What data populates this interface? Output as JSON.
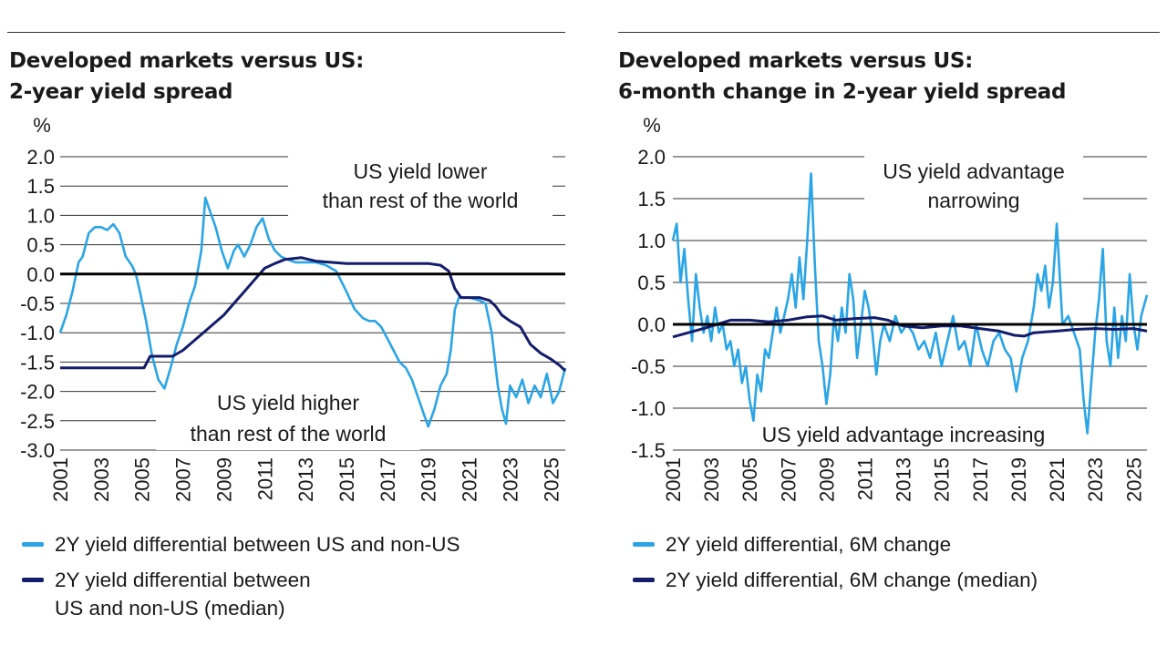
{
  "colors": {
    "light_series": "#2aa5e6",
    "dark_series": "#131d6b",
    "zero_line": "#000000",
    "grid": "#333333",
    "text": "#1a1a1a"
  },
  "chart_data": [
    {
      "type": "line",
      "title": "Developed markets versus US:",
      "subtitle": "2-year yield spread",
      "ylabel": "%",
      "ylim": [
        -3.0,
        2.0
      ],
      "yticks": [
        "2.0",
        "1.5",
        "1.0",
        "0.5",
        "0.0",
        "-0.5",
        "-1.0",
        "-1.5",
        "-2.0",
        "-2.5",
        "-3.0"
      ],
      "xlim": [
        2001,
        2025.7
      ],
      "xticks": [
        "2001",
        "2003",
        "2005",
        "2007",
        "2009",
        "2011",
        "2013",
        "2015",
        "2017",
        "2019",
        "2021",
        "2023",
        "2025"
      ],
      "annotations": [
        {
          "line1": "US yield lower",
          "line2": "than rest of the world"
        },
        {
          "line1": "US yield higher",
          "line2": "than rest of the world"
        }
      ],
      "legend": [
        {
          "lines": [
            "2Y yield differential between US and non-US"
          ],
          "color": "#2aa5e6"
        },
        {
          "lines": [
            "2Y yield differential between",
            "US and non-US (median)"
          ],
          "color": "#131d6b"
        }
      ],
      "series": [
        {
          "name": "2Y yield differential between US and non-US",
          "color": "#2aa5e6",
          "x": [
            2001,
            2001.3,
            2001.6,
            2001.9,
            2002.1,
            2002.4,
            2002.7,
            2003.0,
            2003.3,
            2003.6,
            2003.9,
            2004.2,
            2004.5,
            2004.7,
            2004.9,
            2005.2,
            2005.5,
            2005.8,
            2006.1,
            2006.4,
            2006.7,
            2007.0,
            2007.3,
            2007.6,
            2007.9,
            2008.1,
            2008.3,
            2008.6,
            2008.9,
            2009.2,
            2009.5,
            2009.7,
            2010.0,
            2010.3,
            2010.6,
            2010.9,
            2011.2,
            2011.5,
            2011.8,
            2012.1,
            2012.5,
            2013.0,
            2013.5,
            2014.0,
            2014.5,
            2015.0,
            2015.4,
            2015.8,
            2016.1,
            2016.4,
            2016.7,
            2017.0,
            2017.3,
            2017.6,
            2017.9,
            2018.2,
            2018.5,
            2018.8,
            2019.0,
            2019.3,
            2019.6,
            2019.9,
            2020.1,
            2020.3,
            2020.5,
            2021.0,
            2021.5,
            2021.8,
            2022.1,
            2022.4,
            2022.6,
            2022.8,
            2023.0,
            2023.3,
            2023.6,
            2023.9,
            2024.2,
            2024.5,
            2024.8,
            2025.1,
            2025.4,
            2025.7
          ],
          "y": [
            -1.0,
            -0.7,
            -0.3,
            0.2,
            0.3,
            0.7,
            0.8,
            0.8,
            0.75,
            0.85,
            0.7,
            0.3,
            0.15,
            0.0,
            -0.3,
            -0.8,
            -1.4,
            -1.8,
            -1.95,
            -1.6,
            -1.2,
            -0.9,
            -0.5,
            -0.2,
            0.4,
            1.3,
            1.1,
            0.8,
            0.4,
            0.1,
            0.4,
            0.5,
            0.3,
            0.5,
            0.8,
            0.95,
            0.6,
            0.4,
            0.3,
            0.25,
            0.2,
            0.2,
            0.2,
            0.15,
            0.05,
            -0.3,
            -0.6,
            -0.75,
            -0.8,
            -0.8,
            -0.9,
            -1.1,
            -1.3,
            -1.5,
            -1.6,
            -1.8,
            -2.1,
            -2.4,
            -2.6,
            -2.3,
            -1.9,
            -1.7,
            -1.3,
            -0.6,
            -0.4,
            -0.4,
            -0.45,
            -0.5,
            -1.0,
            -1.9,
            -2.3,
            -2.55,
            -1.9,
            -2.1,
            -1.8,
            -2.2,
            -1.9,
            -2.1,
            -1.7,
            -2.2,
            -2.0,
            -1.6
          ]
        },
        {
          "name": "2Y yield differential between US and non-US (median)",
          "color": "#131d6b",
          "x": [
            2001,
            2005.1,
            2005.4,
            2006.5,
            2007.0,
            2007.5,
            2008.0,
            2008.5,
            2009.0,
            2009.5,
            2010.0,
            2010.5,
            2011.0,
            2011.5,
            2012.0,
            2012.8,
            2013.5,
            2015.0,
            2017.0,
            2019.0,
            2019.6,
            2020.0,
            2020.3,
            2020.6,
            2021.0,
            2021.5,
            2022.0,
            2022.3,
            2022.6,
            2023.0,
            2023.5,
            2024.0,
            2024.5,
            2025.0,
            2025.4,
            2025.7
          ],
          "y": [
            -1.6,
            -1.6,
            -1.4,
            -1.4,
            -1.3,
            -1.15,
            -1.0,
            -0.85,
            -0.7,
            -0.5,
            -0.3,
            -0.1,
            0.1,
            0.18,
            0.25,
            0.28,
            0.22,
            0.18,
            0.18,
            0.18,
            0.15,
            0.05,
            -0.25,
            -0.4,
            -0.4,
            -0.4,
            -0.45,
            -0.55,
            -0.7,
            -0.8,
            -0.9,
            -1.2,
            -1.35,
            -1.45,
            -1.55,
            -1.65
          ]
        }
      ]
    },
    {
      "type": "line",
      "title": "Developed markets versus US:",
      "subtitle": "6-month change in 2-year yield spread",
      "ylabel": "%",
      "ylim": [
        -1.5,
        2.0
      ],
      "yticks": [
        "2.0",
        "1.5",
        "1.0",
        "0.5",
        "0.0",
        "-0.5",
        "-1.0",
        "-1.5"
      ],
      "xlim": [
        2001,
        2025.7
      ],
      "xticks": [
        "2001",
        "2003",
        "2005",
        "2007",
        "2009",
        "2011",
        "2013",
        "2015",
        "2017",
        "2019",
        "2021",
        "2023",
        "2025"
      ],
      "annotations": [
        {
          "line1": "US yield advantage",
          "line2": "narrowing"
        },
        {
          "line1": "US yield advantage increasing",
          "line2": ""
        }
      ],
      "legend": [
        {
          "lines": [
            "2Y yield differential, 6M change"
          ],
          "color": "#2aa5e6"
        },
        {
          "lines": [
            "2Y yield differential, 6M change (median)"
          ],
          "color": "#131d6b"
        }
      ],
      "series": [
        {
          "name": "2Y yield differential, 6M change",
          "color": "#2aa5e6",
          "x": [
            2001,
            2001.2,
            2001.4,
            2001.6,
            2001.8,
            2002.0,
            2002.2,
            2002.4,
            2002.6,
            2002.8,
            2003.0,
            2003.2,
            2003.4,
            2003.6,
            2003.8,
            2004.0,
            2004.2,
            2004.4,
            2004.6,
            2004.8,
            2005.0,
            2005.2,
            2005.4,
            2005.6,
            2005.8,
            2006.0,
            2006.2,
            2006.4,
            2006.6,
            2006.8,
            2007.0,
            2007.2,
            2007.4,
            2007.6,
            2007.8,
            2008.0,
            2008.2,
            2008.4,
            2008.6,
            2008.8,
            2009.0,
            2009.2,
            2009.4,
            2009.6,
            2009.8,
            2010.0,
            2010.2,
            2010.4,
            2010.6,
            2010.8,
            2011.0,
            2011.2,
            2011.4,
            2011.6,
            2011.8,
            2012.0,
            2012.3,
            2012.6,
            2012.9,
            2013.2,
            2013.5,
            2013.8,
            2014.1,
            2014.4,
            2014.7,
            2015.0,
            2015.3,
            2015.6,
            2015.9,
            2016.2,
            2016.5,
            2016.8,
            2017.1,
            2017.4,
            2017.7,
            2018.0,
            2018.3,
            2018.6,
            2018.9,
            2019.2,
            2019.5,
            2019.8,
            2020.0,
            2020.2,
            2020.4,
            2020.6,
            2020.8,
            2021.0,
            2021.3,
            2021.6,
            2021.9,
            2022.2,
            2022.4,
            2022.6,
            2022.8,
            2023.0,
            2023.2,
            2023.4,
            2023.6,
            2023.8,
            2024.0,
            2024.2,
            2024.4,
            2024.6,
            2024.8,
            2025.0,
            2025.2,
            2025.4,
            2025.7
          ],
          "y": [
            1.0,
            1.2,
            0.5,
            0.9,
            0.3,
            -0.2,
            0.6,
            0.2,
            -0.1,
            0.1,
            -0.2,
            0.2,
            -0.1,
            0.0,
            -0.3,
            -0.2,
            -0.5,
            -0.3,
            -0.7,
            -0.5,
            -0.9,
            -1.15,
            -0.6,
            -0.8,
            -0.3,
            -0.4,
            -0.1,
            0.2,
            -0.1,
            0.1,
            0.3,
            0.6,
            0.2,
            0.8,
            0.3,
            1.0,
            1.8,
            0.7,
            -0.2,
            -0.5,
            -0.95,
            -0.6,
            0.1,
            -0.2,
            0.2,
            -0.1,
            0.6,
            0.3,
            -0.4,
            0.0,
            0.4,
            0.2,
            -0.1,
            -0.6,
            -0.2,
            0.0,
            -0.2,
            0.1,
            -0.1,
            0.0,
            -0.1,
            -0.3,
            -0.2,
            -0.4,
            -0.1,
            -0.5,
            -0.2,
            0.1,
            -0.3,
            -0.2,
            -0.5,
            0.0,
            -0.3,
            -0.5,
            -0.2,
            -0.1,
            -0.3,
            -0.4,
            -0.8,
            -0.4,
            -0.2,
            0.2,
            0.6,
            0.4,
            0.7,
            0.2,
            0.5,
            1.2,
            0.0,
            0.1,
            -0.1,
            -0.3,
            -0.9,
            -1.3,
            -0.7,
            -0.1,
            0.3,
            0.9,
            -0.2,
            -0.5,
            0.2,
            -0.4,
            0.1,
            -0.2,
            0.6,
            0.0,
            -0.3,
            0.1,
            0.35
          ]
        },
        {
          "name": "2Y yield differential, 6M change (median)",
          "color": "#131d6b",
          "x": [
            2001,
            2001.8,
            2002.6,
            2004.0,
            2005.0,
            2006.0,
            2007.0,
            2008.0,
            2008.8,
            2009.5,
            2010.5,
            2011.5,
            2012.2,
            2013.0,
            2014.0,
            2015.0,
            2016.0,
            2017.0,
            2018.0,
            2018.8,
            2019.3,
            2019.8,
            2021.0,
            2022.0,
            2023.0,
            2024.0,
            2025.0,
            2025.7
          ],
          "y": [
            -0.15,
            -0.1,
            -0.05,
            0.05,
            0.05,
            0.03,
            0.05,
            0.09,
            0.1,
            0.05,
            0.07,
            0.08,
            0.05,
            -0.02,
            -0.04,
            -0.02,
            -0.02,
            -0.05,
            -0.08,
            -0.13,
            -0.14,
            -0.1,
            -0.08,
            -0.06,
            -0.05,
            -0.06,
            -0.05,
            -0.08
          ]
        }
      ]
    }
  ]
}
